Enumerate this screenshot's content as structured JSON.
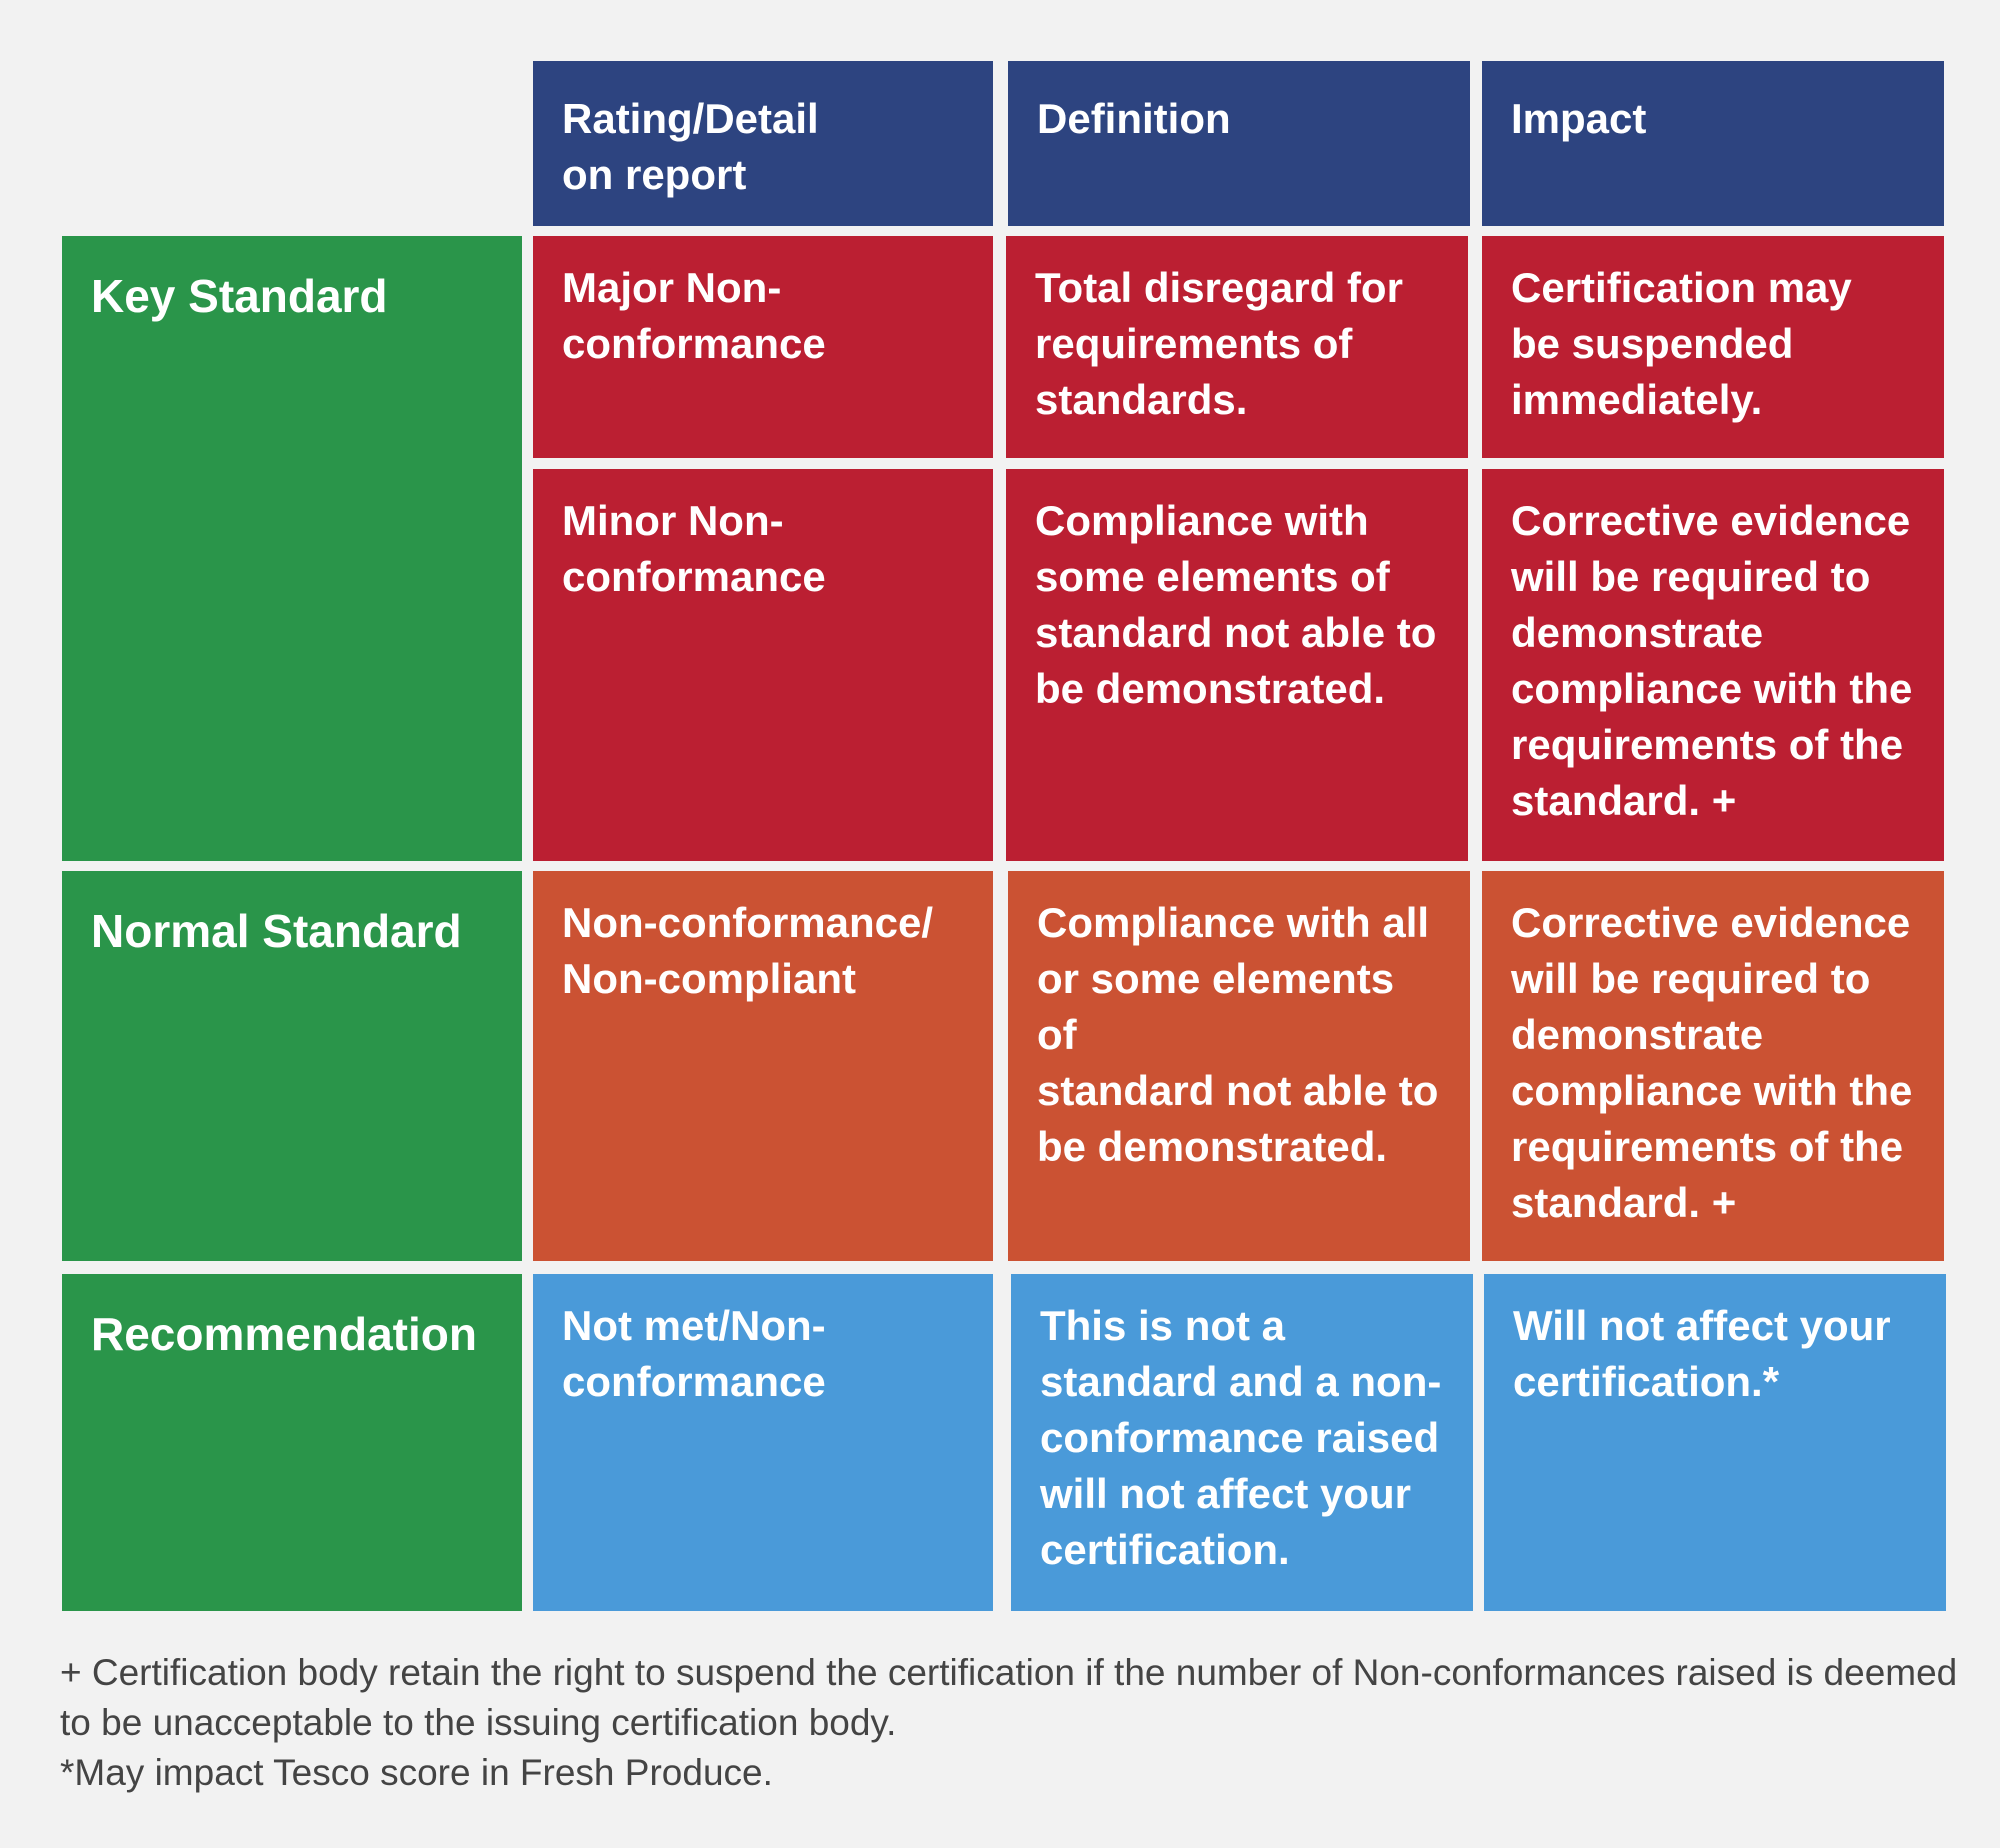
{
  "header": {
    "rating": "Rating/Detail\non report",
    "definition": "Definition",
    "impact": "Impact"
  },
  "groups": {
    "key": "Key Standard",
    "normal": "Normal Standard",
    "recommendation": "Recommendation"
  },
  "rows": [
    {
      "rating": "Major Non-\nconformance",
      "definition": "Total disregard for\nrequirements of\nstandards.",
      "impact": "Certification may\nbe suspended\nimmediately."
    },
    {
      "rating": "Minor Non-\nconformance",
      "definition": "Compliance with\nsome elements of\nstandard not able to\nbe demonstrated.",
      "impact": "Corrective evidence\nwill be required to\ndemonstrate\ncompliance with the\nrequirements of the\nstandard. +"
    },
    {
      "rating": "Non-conformance/\nNon-compliant",
      "definition": "Compliance with all\nor some elements of\nstandard not able to\nbe demonstrated.",
      "impact": "Corrective evidence\nwill be required to\ndemonstrate\ncompliance with the\nrequirements of the\nstandard. +"
    },
    {
      "rating": "Not met/Non-\nconformance",
      "definition": "This is not a\nstandard and a non-\nconformance raised\nwill not affect your\ncertification.",
      "impact": "Will not affect your\ncertification.*"
    }
  ],
  "footnotes": [
    "+ Certification body retain the right to suspend the certification if the number of Non-conformances raised is deemed to be unacceptable to the issuing certification body.",
    "*May impact Tesco score in Fresh Produce."
  ],
  "colors": {
    "header": "#2d4480",
    "group": "#2a954a",
    "key_standard": "#bb1f32",
    "normal_standard": "#cb5233",
    "recommendation": "#4a9ad9",
    "background": "#f2f2f2"
  }
}
